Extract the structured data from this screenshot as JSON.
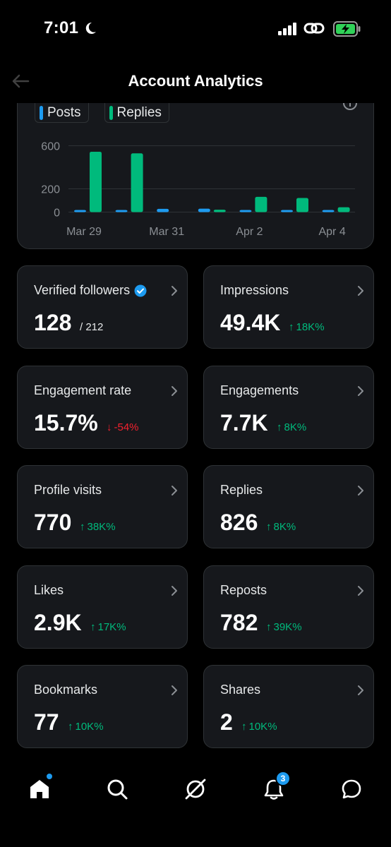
{
  "status": {
    "time": "7:01"
  },
  "header": {
    "title": "Account Analytics"
  },
  "legend": [
    {
      "label": "Posts",
      "color": "#1d9bf0"
    },
    {
      "label": "Replies",
      "color": "#00ba7c"
    }
  ],
  "chart_data": {
    "type": "bar",
    "x": [
      "Mar 29",
      "Mar 30",
      "Mar 31",
      "Apr 1",
      "Apr 2",
      "Apr 3",
      "Apr 4"
    ],
    "tick_labels": [
      "Mar 29",
      "Mar 31",
      "Apr 2",
      "Apr 4"
    ],
    "y_ticks": [
      "600",
      "200",
      "0"
    ],
    "ylim": [
      0,
      650
    ],
    "series": [
      {
        "name": "Posts",
        "color": "#1d9bf0",
        "values": [
          18,
          15,
          30,
          32,
          4,
          12,
          10
        ]
      },
      {
        "name": "Replies",
        "color": "#00ba7c",
        "values": [
          555,
          540,
          0,
          22,
          140,
          130,
          45
        ]
      }
    ]
  },
  "cards": [
    {
      "label": "Verified followers",
      "value": "128",
      "extra": "/ 212",
      "extra_kind": "muted",
      "verified": true
    },
    {
      "label": "Impressions",
      "value": "49.4K",
      "extra": "18K%",
      "extra_kind": "up"
    },
    {
      "label": "Engagement rate",
      "value": "15.7%",
      "extra": "-54%",
      "extra_kind": "down"
    },
    {
      "label": "Engagements",
      "value": "7.7K",
      "extra": "8K%",
      "extra_kind": "up"
    },
    {
      "label": "Profile visits",
      "value": "770",
      "extra": "38K%",
      "extra_kind": "up"
    },
    {
      "label": "Replies",
      "value": "826",
      "extra": "8K%",
      "extra_kind": "up"
    },
    {
      "label": "Likes",
      "value": "2.9K",
      "extra": "17K%",
      "extra_kind": "up"
    },
    {
      "label": "Reposts",
      "value": "782",
      "extra": "39K%",
      "extra_kind": "up"
    },
    {
      "label": "Bookmarks",
      "value": "77",
      "extra": "10K%",
      "extra_kind": "up"
    },
    {
      "label": "Shares",
      "value": "2",
      "extra": "10K%",
      "extra_kind": "up"
    }
  ],
  "tabs": [
    {
      "name": "home-icon",
      "active": true
    },
    {
      "name": "search-icon"
    },
    {
      "name": "grok-icon"
    },
    {
      "name": "notifications-icon",
      "badge": "3"
    },
    {
      "name": "messages-icon"
    }
  ]
}
